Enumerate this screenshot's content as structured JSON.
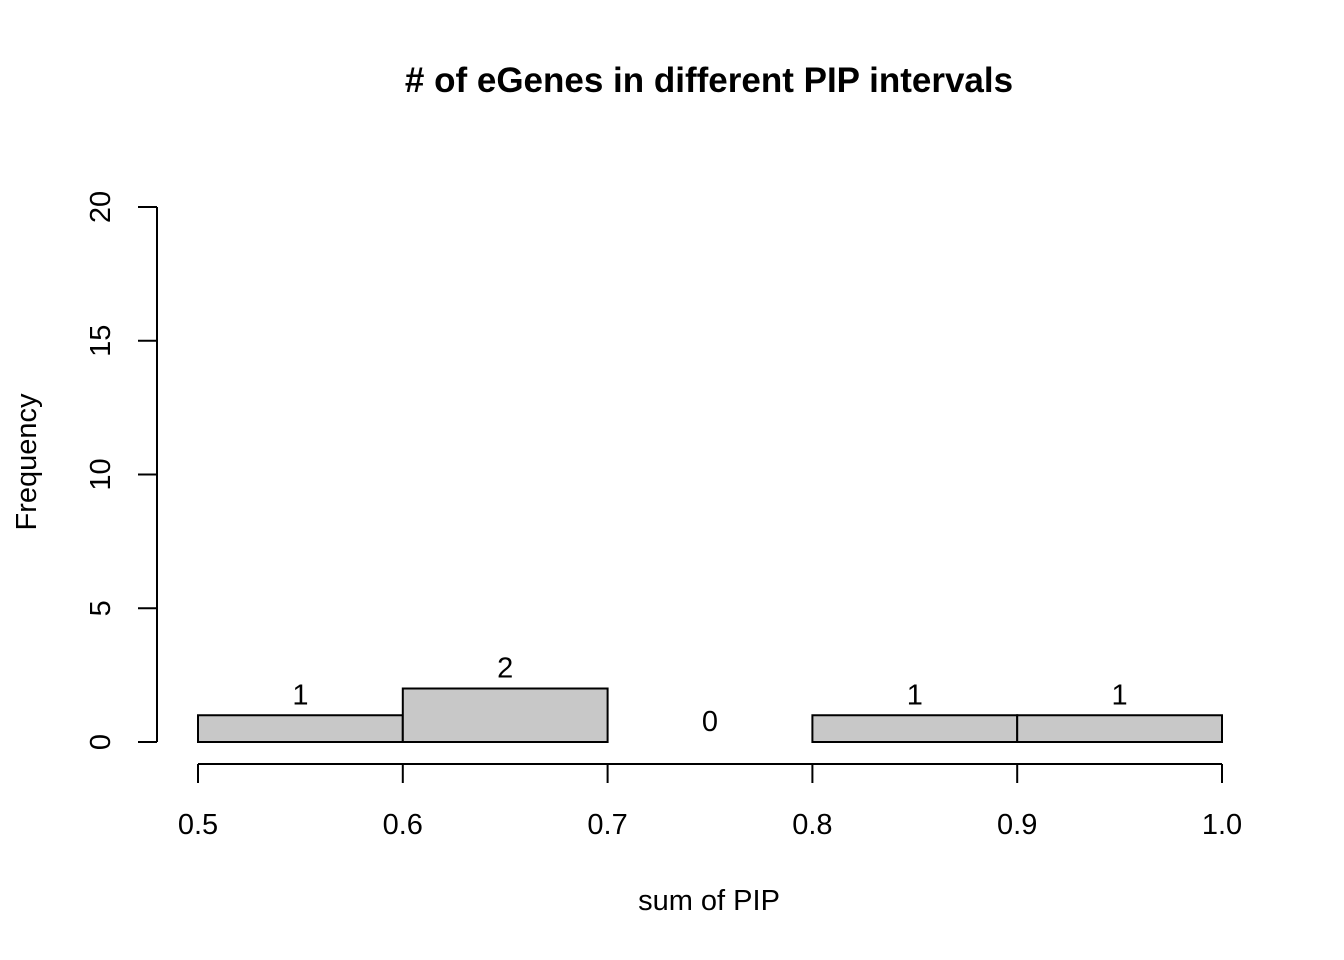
{
  "chart_data": {
    "type": "bar",
    "title": "# of eGenes in different PIP intervals",
    "xlabel": "sum of PIP",
    "ylabel": "Frequency",
    "xlim": [
      0.5,
      1.0
    ],
    "ylim": [
      0,
      20
    ],
    "x_ticks": [
      "0.5",
      "0.6",
      "0.7",
      "0.8",
      "0.9",
      "1.0"
    ],
    "y_ticks": [
      "0",
      "5",
      "10",
      "15",
      "20"
    ],
    "bins": [
      {
        "from": 0.5,
        "to": 0.6,
        "value": 1,
        "label": "1"
      },
      {
        "from": 0.6,
        "to": 0.7,
        "value": 2,
        "label": "2"
      },
      {
        "from": 0.7,
        "to": 0.8,
        "value": 0,
        "label": "0"
      },
      {
        "from": 0.8,
        "to": 0.9,
        "value": 1,
        "label": "1"
      },
      {
        "from": 0.9,
        "to": 1.0,
        "value": 1,
        "label": "1"
      }
    ],
    "bar_fill": "#c8c8c8",
    "grid": false
  }
}
